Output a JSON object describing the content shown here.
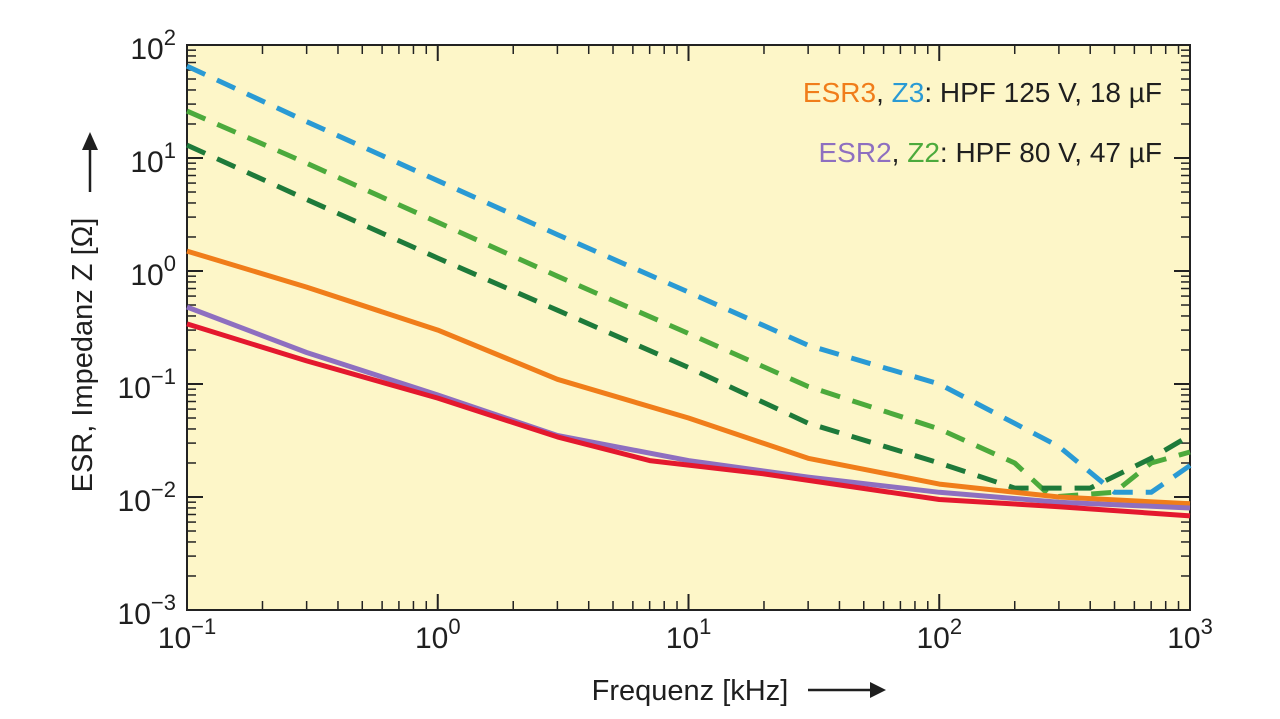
{
  "chart_data": {
    "type": "line",
    "title": "",
    "xlabel": "Frequenz [kHz]",
    "ylabel": "ESR, Impedanz Z [Ω]",
    "xscale": "log",
    "yscale": "log",
    "xlim": [
      0.1,
      1000
    ],
    "ylim": [
      0.001,
      100
    ],
    "grid": false,
    "background_color": "#fdf6c8",
    "legend_position": "top-right",
    "x_ticks": [
      {
        "base": "10",
        "exp": "−1"
      },
      {
        "base": "10",
        "exp": "0"
      },
      {
        "base": "10",
        "exp": "1"
      },
      {
        "base": "10",
        "exp": "2"
      },
      {
        "base": "10",
        "exp": "3"
      }
    ],
    "y_ticks": [
      {
        "base": "10",
        "exp": "−3"
      },
      {
        "base": "10",
        "exp": "−2"
      },
      {
        "base": "10",
        "exp": "−1"
      },
      {
        "base": "10",
        "exp": "0"
      },
      {
        "base": "10",
        "exp": "1"
      },
      {
        "base": "10",
        "exp": "2"
      }
    ],
    "legend": [
      {
        "parts": [
          {
            "text": "ESR3",
            "color": "#f07d1a"
          },
          {
            "text": ", ",
            "color": "#1f1f1f"
          },
          {
            "text": "Z3",
            "color": "#2a9ad4"
          },
          {
            "text": ": HPF 125 V, 18 µF",
            "color": "#1f1f1f"
          }
        ]
      },
      {
        "parts": [
          {
            "text": "ESR2",
            "color": "#8e6fc0"
          },
          {
            "text": ", ",
            "color": "#1f1f1f"
          },
          {
            "text": "Z2",
            "color": "#4caa3c"
          },
          {
            "text": ": HPF 80 V, 47 µF",
            "color": "#1f1f1f"
          }
        ]
      }
    ],
    "series": [
      {
        "name": "Z3",
        "color": "#2a9ad4",
        "dash": true,
        "points": [
          [
            0.1,
            65
          ],
          [
            0.3,
            21
          ],
          [
            1,
            6.3
          ],
          [
            3,
            2.1
          ],
          [
            10,
            0.65
          ],
          [
            30,
            0.22
          ],
          [
            100,
            0.1
          ],
          [
            300,
            0.028
          ],
          [
            500,
            0.011
          ],
          [
            700,
            0.011
          ],
          [
            1000,
            0.019
          ]
        ]
      },
      {
        "name": "Z2",
        "color": "#4caa3c",
        "dash": true,
        "points": [
          [
            0.1,
            26
          ],
          [
            0.3,
            9
          ],
          [
            1,
            2.7
          ],
          [
            3,
            0.9
          ],
          [
            10,
            0.28
          ],
          [
            30,
            0.095
          ],
          [
            100,
            0.04
          ],
          [
            200,
            0.02
          ],
          [
            280,
            0.01
          ],
          [
            500,
            0.011
          ],
          [
            700,
            0.02
          ],
          [
            1000,
            0.025
          ]
        ]
      },
      {
        "name": "",
        "color": "#1e7a3a",
        "dash": true,
        "points": [
          [
            0.1,
            13
          ],
          [
            0.3,
            4.3
          ],
          [
            1,
            1.3
          ],
          [
            3,
            0.45
          ],
          [
            10,
            0.14
          ],
          [
            30,
            0.045
          ],
          [
            100,
            0.02
          ],
          [
            200,
            0.012
          ],
          [
            400,
            0.012
          ],
          [
            700,
            0.022
          ],
          [
            1000,
            0.035
          ]
        ]
      },
      {
        "name": "ESR3",
        "color": "#f07d1a",
        "dash": false,
        "points": [
          [
            0.1,
            1.5
          ],
          [
            0.3,
            0.72
          ],
          [
            1,
            0.3
          ],
          [
            3,
            0.11
          ],
          [
            10,
            0.05
          ],
          [
            30,
            0.022
          ],
          [
            100,
            0.013
          ],
          [
            300,
            0.01
          ],
          [
            1000,
            0.0087
          ]
        ]
      },
      {
        "name": "ESR2",
        "color": "#8e6fc0",
        "dash": false,
        "points": [
          [
            0.1,
            0.48
          ],
          [
            0.3,
            0.19
          ],
          [
            1,
            0.08
          ],
          [
            3,
            0.035
          ],
          [
            10,
            0.021
          ],
          [
            30,
            0.015
          ],
          [
            100,
            0.011
          ],
          [
            300,
            0.009
          ],
          [
            1000,
            0.008
          ]
        ]
      },
      {
        "name": "",
        "color": "#e4182e",
        "dash": false,
        "points": [
          [
            0.1,
            0.34
          ],
          [
            0.3,
            0.16
          ],
          [
            1,
            0.075
          ],
          [
            3,
            0.034
          ],
          [
            7,
            0.021
          ],
          [
            20,
            0.016
          ],
          [
            100,
            0.0095
          ],
          [
            300,
            0.0082
          ],
          [
            1000,
            0.0068
          ]
        ]
      }
    ]
  }
}
